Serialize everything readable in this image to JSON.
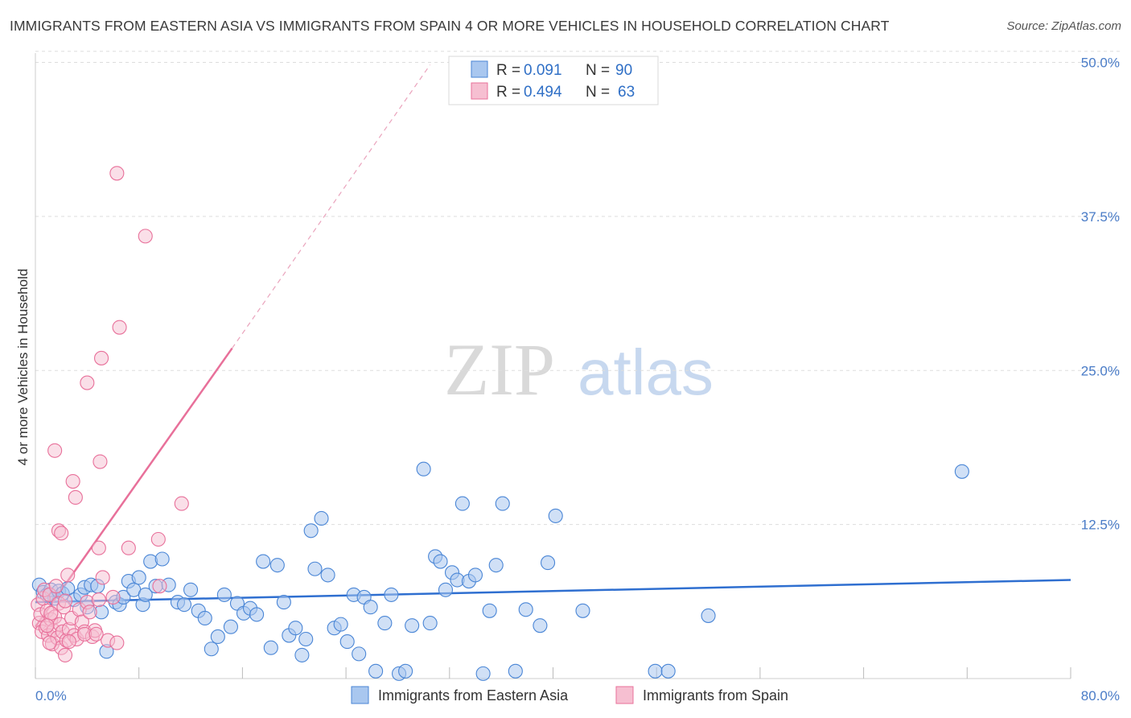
{
  "title": "IMMIGRANTS FROM EASTERN ASIA VS IMMIGRANTS FROM SPAIN 4 OR MORE VEHICLES IN HOUSEHOLD CORRELATION CHART",
  "source": "Source: ZipAtlas.com",
  "watermark": {
    "zip": "ZIP",
    "atlas": "atlas"
  },
  "colors": {
    "blue": "#4a86d6",
    "blue_fill": "#a9c7ef",
    "blue_line": "#2f6fd0",
    "pink": "#e8709a",
    "pink_fill": "#f6bfd1",
    "pink_line": "#e8709a",
    "grid": "#dddddd",
    "tick_text": "#4a7cc7"
  },
  "legend": {
    "rows": [
      {
        "r_label": "R =",
        "r_value": "0.091",
        "n_label": "N =",
        "n_value": "90"
      },
      {
        "r_label": "R =",
        "r_value": "0.494",
        "n_label": "N =",
        "n_value": "63"
      }
    ]
  },
  "chart_data": {
    "type": "scatter",
    "title": "IMMIGRANTS FROM EASTERN ASIA VS IMMIGRANTS FROM SPAIN 4 OR MORE VEHICLES IN HOUSEHOLD CORRELATION CHART",
    "xlabel": "",
    "ylabel": "4 or more Vehicles in Household",
    "xlim": [
      0,
      80
    ],
    "ylim": [
      0,
      52
    ],
    "x_tick_labels": [
      "0.0%",
      "80.0%"
    ],
    "y_ticks": [
      12.5,
      25.0,
      37.5,
      50.0
    ],
    "y_tick_labels": [
      "12.5%",
      "25.0%",
      "37.5%",
      "50.0%"
    ],
    "grid": true,
    "series": [
      {
        "name": "Immigrants from Eastern Asia",
        "color": "#4a86d6",
        "R": 0.091,
        "N": 90,
        "trend": {
          "x": [
            0,
            80
          ],
          "y": [
            6.2,
            8.0
          ]
        },
        "points": [
          [
            0.3,
            7.6
          ],
          [
            0.6,
            7.0
          ],
          [
            0.9,
            6.8
          ],
          [
            1.2,
            7.2
          ],
          [
            1.5,
            6.5
          ],
          [
            1.8,
            7.1
          ],
          [
            2.1,
            6.9
          ],
          [
            2.5,
            7.3
          ],
          [
            3.0,
            6.4
          ],
          [
            3.5,
            6.8
          ],
          [
            3.8,
            7.4
          ],
          [
            4.0,
            5.8
          ],
          [
            4.3,
            7.6
          ],
          [
            4.8,
            7.5
          ],
          [
            5.1,
            5.4
          ],
          [
            5.5,
            2.2
          ],
          [
            6.2,
            6.2
          ],
          [
            6.5,
            6.0
          ],
          [
            6.8,
            6.6
          ],
          [
            7.2,
            7.9
          ],
          [
            7.6,
            7.2
          ],
          [
            8.0,
            8.2
          ],
          [
            8.3,
            6.0
          ],
          [
            8.5,
            6.8
          ],
          [
            8.9,
            9.5
          ],
          [
            9.3,
            7.5
          ],
          [
            9.8,
            9.7
          ],
          [
            10.3,
            7.6
          ],
          [
            11.0,
            6.2
          ],
          [
            11.5,
            6.0
          ],
          [
            12.0,
            7.2
          ],
          [
            12.6,
            5.5
          ],
          [
            13.1,
            4.9
          ],
          [
            13.6,
            2.4
          ],
          [
            14.1,
            3.4
          ],
          [
            14.6,
            6.8
          ],
          [
            15.1,
            4.2
          ],
          [
            15.6,
            6.1
          ],
          [
            16.1,
            5.3
          ],
          [
            16.6,
            5.7
          ],
          [
            17.1,
            5.2
          ],
          [
            17.6,
            9.5
          ],
          [
            18.2,
            2.5
          ],
          [
            18.7,
            9.2
          ],
          [
            19.2,
            6.2
          ],
          [
            19.6,
            3.5
          ],
          [
            20.1,
            4.1
          ],
          [
            20.6,
            1.9
          ],
          [
            20.9,
            3.2
          ],
          [
            21.3,
            12.0
          ],
          [
            21.6,
            8.9
          ],
          [
            22.1,
            13.0
          ],
          [
            22.6,
            8.4
          ],
          [
            23.1,
            4.1
          ],
          [
            23.6,
            4.4
          ],
          [
            24.1,
            3.0
          ],
          [
            24.6,
            6.8
          ],
          [
            25.0,
            2.0
          ],
          [
            25.4,
            6.6
          ],
          [
            25.9,
            5.8
          ],
          [
            26.3,
            0.6
          ],
          [
            27.0,
            4.5
          ],
          [
            27.5,
            6.8
          ],
          [
            28.1,
            0.4
          ],
          [
            28.6,
            0.6
          ],
          [
            29.1,
            4.3
          ],
          [
            30.0,
            17.0
          ],
          [
            30.5,
            4.5
          ],
          [
            30.9,
            9.9
          ],
          [
            31.3,
            9.5
          ],
          [
            31.7,
            7.2
          ],
          [
            32.2,
            8.6
          ],
          [
            32.6,
            8.0
          ],
          [
            33.0,
            14.2
          ],
          [
            33.5,
            7.9
          ],
          [
            34.0,
            8.4
          ],
          [
            34.6,
            0.4
          ],
          [
            35.1,
            5.5
          ],
          [
            35.6,
            9.2
          ],
          [
            36.1,
            14.2
          ],
          [
            37.1,
            0.6
          ],
          [
            37.9,
            5.6
          ],
          [
            39.0,
            4.3
          ],
          [
            39.6,
            9.4
          ],
          [
            40.2,
            13.2
          ],
          [
            42.3,
            5.5
          ],
          [
            47.9,
            0.6
          ],
          [
            48.9,
            0.6
          ],
          [
            52.0,
            5.1
          ],
          [
            71.6,
            16.8
          ]
        ]
      },
      {
        "name": "Immigrants from Spain",
        "color": "#e8709a",
        "R": 0.494,
        "N": 63,
        "trend": {
          "x": [
            0,
            15.2
          ],
          "y": [
            4.2,
            26.8
          ]
        },
        "trend_ext": {
          "x": [
            15.2,
            30.5
          ],
          "y": [
            26.8,
            49.8
          ]
        },
        "points": [
          [
            0.2,
            6.0
          ],
          [
            0.3,
            4.5
          ],
          [
            0.4,
            5.2
          ],
          [
            0.5,
            3.8
          ],
          [
            0.6,
            6.5
          ],
          [
            0.7,
            7.2
          ],
          [
            0.8,
            4.1
          ],
          [
            0.9,
            5.5
          ],
          [
            1.0,
            3.5
          ],
          [
            1.1,
            6.8
          ],
          [
            1.2,
            4.8
          ],
          [
            1.3,
            2.8
          ],
          [
            1.4,
            3.9
          ],
          [
            1.5,
            5.0
          ],
          [
            1.6,
            7.5
          ],
          [
            1.7,
            3.3
          ],
          [
            1.8,
            6.1
          ],
          [
            1.9,
            4.4
          ],
          [
            2.0,
            2.5
          ],
          [
            2.1,
            3.8
          ],
          [
            2.2,
            5.8
          ],
          [
            2.3,
            6.3
          ],
          [
            2.4,
            3.1
          ],
          [
            2.5,
            8.4
          ],
          [
            2.6,
            4.0
          ],
          [
            2.8,
            4.9
          ],
          [
            3.0,
            3.5
          ],
          [
            3.2,
            3.2
          ],
          [
            3.4,
            5.6
          ],
          [
            3.6,
            4.6
          ],
          [
            3.8,
            3.8
          ],
          [
            4.0,
            6.2
          ],
          [
            4.2,
            5.4
          ],
          [
            4.4,
            3.4
          ],
          [
            4.6,
            3.9
          ],
          [
            4.9,
            6.4
          ],
          [
            5.2,
            8.2
          ],
          [
            5.6,
            3.1
          ],
          [
            6.0,
            6.6
          ],
          [
            1.5,
            18.5
          ],
          [
            1.8,
            12.0
          ],
          [
            2.0,
            11.8
          ],
          [
            2.9,
            16.0
          ],
          [
            3.1,
            14.7
          ],
          [
            4.0,
            24.0
          ],
          [
            5.0,
            17.6
          ],
          [
            5.1,
            26.0
          ],
          [
            6.5,
            28.5
          ],
          [
            6.3,
            41.0
          ],
          [
            8.5,
            35.9
          ],
          [
            4.9,
            10.6
          ],
          [
            7.2,
            10.6
          ],
          [
            9.5,
            11.3
          ],
          [
            11.3,
            14.2
          ],
          [
            9.6,
            7.5
          ],
          [
            6.3,
            2.9
          ],
          [
            3.8,
            3.6
          ],
          [
            2.3,
            1.9
          ],
          [
            1.2,
            5.3
          ],
          [
            0.9,
            4.3
          ],
          [
            1.1,
            2.9
          ],
          [
            2.6,
            3.0
          ],
          [
            4.7,
            3.6
          ]
        ]
      }
    ]
  }
}
